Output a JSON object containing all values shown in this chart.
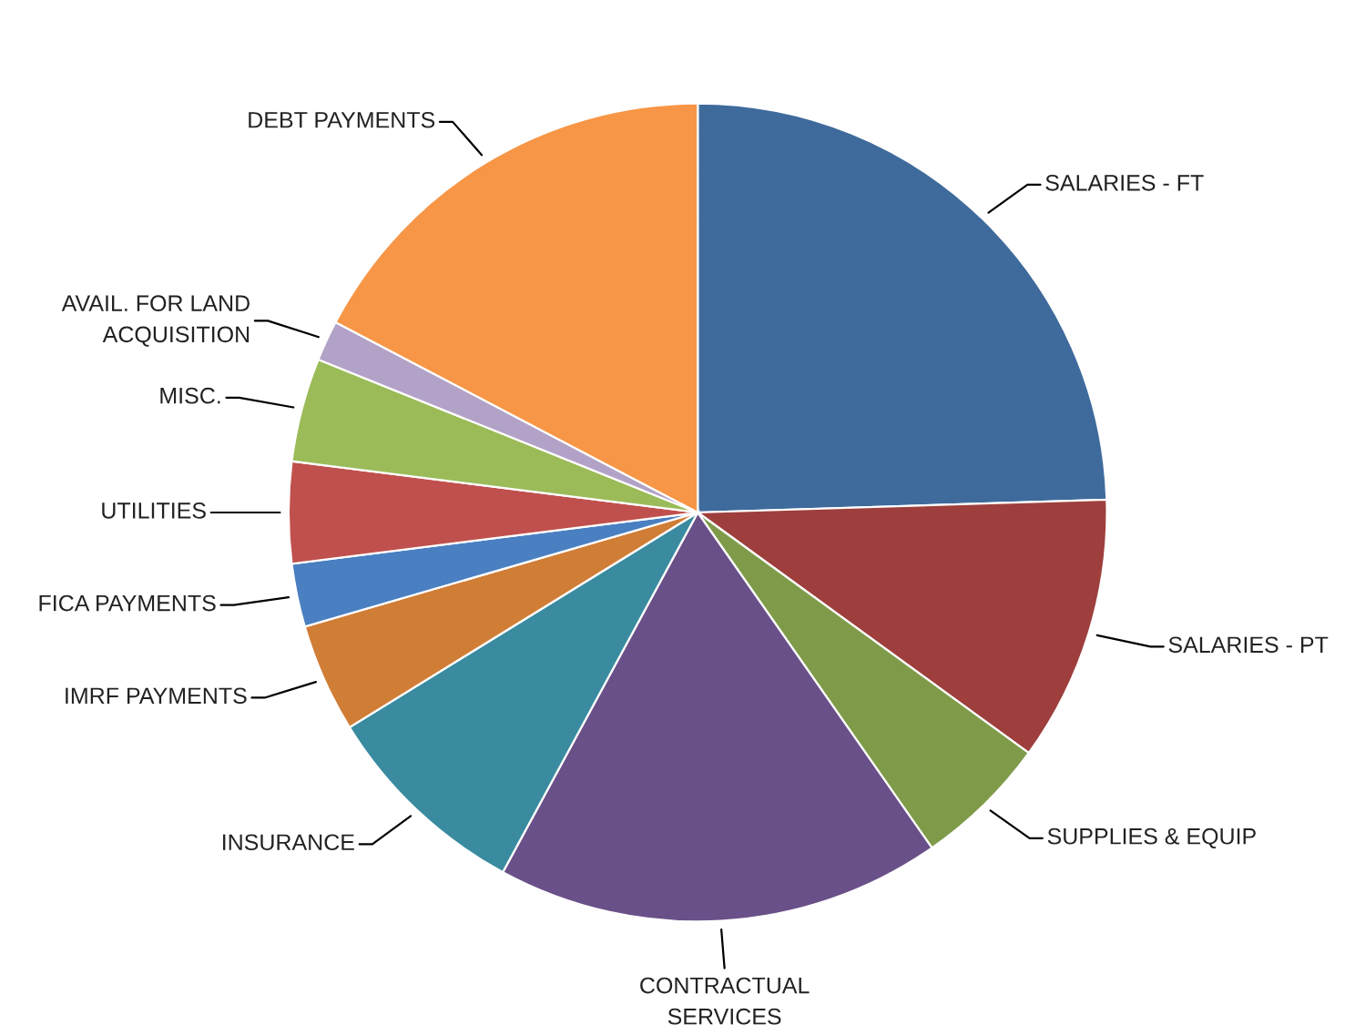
{
  "chart_data": {
    "type": "pie",
    "categories": [
      "SALARIES - FT",
      "SALARIES - PT",
      "SUPPLIES & EQUIP",
      "CONTRACTUAL\nSERVICES",
      "INSURANCE",
      "IMRF PAYMENTS",
      "FICA PAYMENTS",
      "UTILITIES",
      "MISC.",
      "AVAIL. FOR LAND\nACQUISITION",
      "DEBT PAYMENTS"
    ],
    "values": [
      24.5,
      10.5,
      5.3,
      17.6,
      8.3,
      4.3,
      2.5,
      4.0,
      4.1,
      1.6,
      17.3
    ],
    "colors": [
      "#3f6a9c",
      "#9e3f3d",
      "#7f9b49",
      "#6a5088",
      "#3a8ba0",
      "#d07d36",
      "#4a7fc1",
      "#c0504d",
      "#9bbb59",
      "#b3a2c7",
      "#f79646"
    ],
    "legend": false
  }
}
